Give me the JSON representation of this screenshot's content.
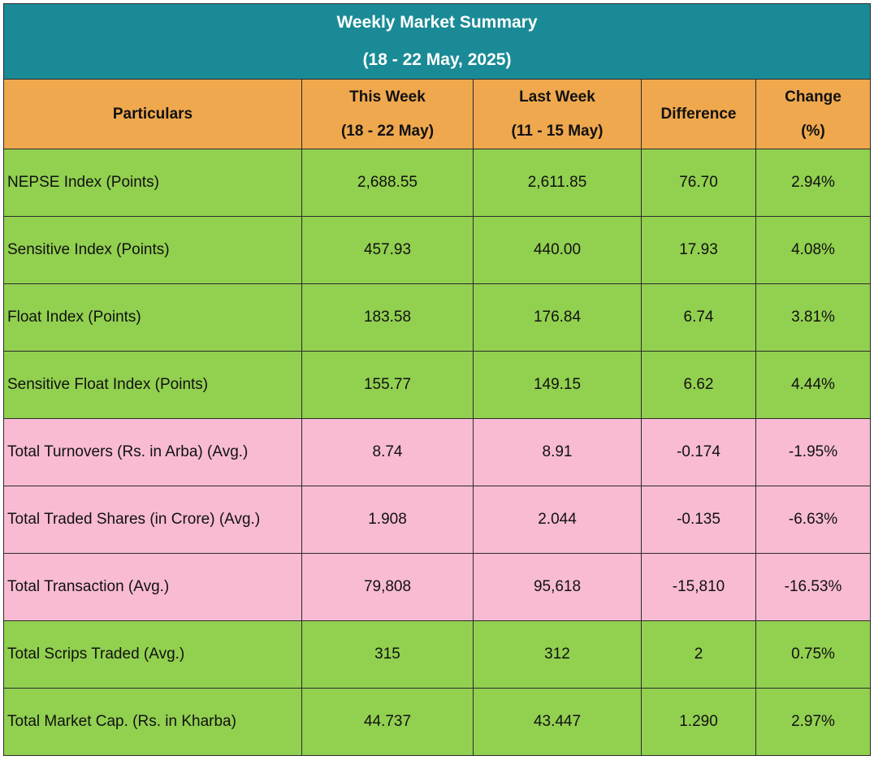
{
  "title": {
    "line1": "Weekly Market Summary",
    "line2": "(18 - 22 May, 2025)"
  },
  "columns": {
    "particulars": "Particulars",
    "this_week": {
      "line1": "This Week",
      "line2": "(18 - 22 May)"
    },
    "last_week": {
      "line1": "Last Week",
      "line2": "(11 - 15 May)"
    },
    "difference": "Difference",
    "change": {
      "line1": "Change",
      "line2": "(%)"
    }
  },
  "colors": {
    "title_bg": "#1a8b96",
    "header_bg": "#efa84e",
    "index_rows_bg": "#92d050",
    "turnover_rows_bg": "#f8bbd3"
  },
  "rows": [
    {
      "label": "NEPSE Index (Points)",
      "this_week": "2,688.55",
      "last_week": "2,611.85",
      "difference": "76.70",
      "change": "2.94%",
      "group": "green"
    },
    {
      "label": "Sensitive Index (Points)",
      "this_week": "457.93",
      "last_week": "440.00",
      "difference": "17.93",
      "change": "4.08%",
      "group": "green"
    },
    {
      "label": "Float Index (Points)",
      "this_week": "183.58",
      "last_week": "176.84",
      "difference": "6.74",
      "change": "3.81%",
      "group": "green"
    },
    {
      "label": "Sensitive Float Index (Points)",
      "this_week": "155.77",
      "last_week": "149.15",
      "difference": "6.62",
      "change": "4.44%",
      "group": "green"
    },
    {
      "label": "Total Turnovers (Rs. in Arba) (Avg.)",
      "this_week": "8.74",
      "last_week": "8.91",
      "difference": "-0.174",
      "change": "-1.95%",
      "group": "pink"
    },
    {
      "label": "Total Traded Shares (in Crore) (Avg.)",
      "this_week": "1.908",
      "last_week": "2.044",
      "difference": "-0.135",
      "change": "-6.63%",
      "group": "pink"
    },
    {
      "label": "Total Transaction (Avg.)",
      "this_week": "79,808",
      "last_week": "95,618",
      "difference": "-15,810",
      "change": "-16.53%",
      "group": "pink"
    },
    {
      "label": "Total Scrips Traded (Avg.)",
      "this_week": "315",
      "last_week": "312",
      "difference": "2",
      "change": "0.75%",
      "group": "green"
    },
    {
      "label": "Total Market Cap. (Rs. in Kharba)",
      "this_week": "44.737",
      "last_week": "43.447",
      "difference": "1.290",
      "change": "2.97%",
      "group": "green"
    }
  ]
}
